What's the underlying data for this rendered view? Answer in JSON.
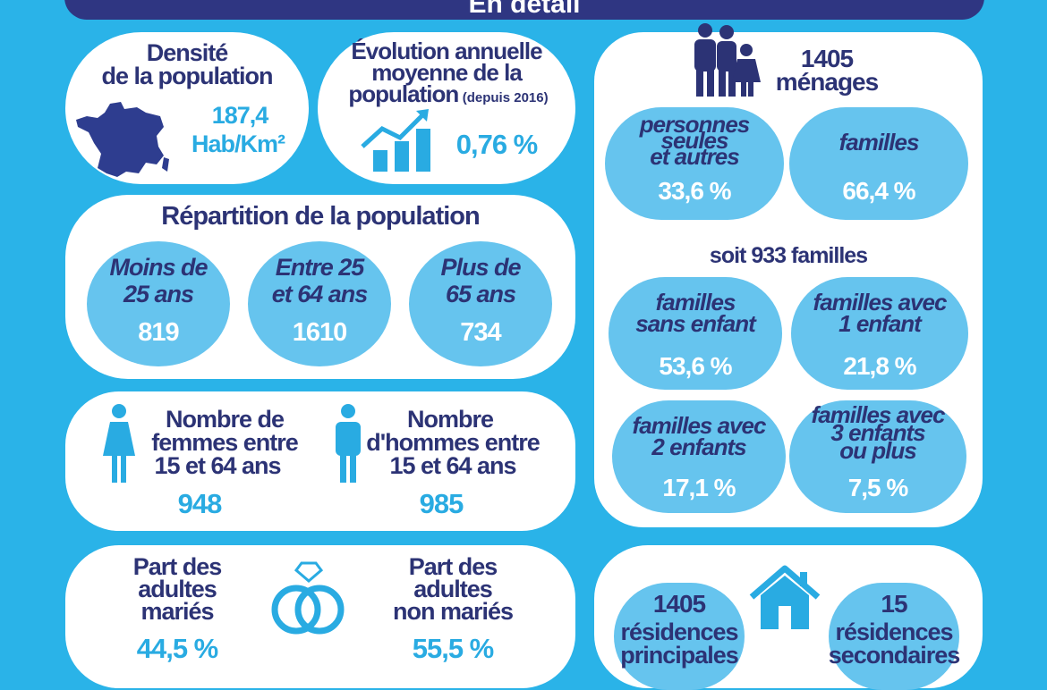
{
  "banner": {
    "title": "En détail"
  },
  "density": {
    "title_line1": "Densité",
    "title_line2": "de la population",
    "value": "187,4",
    "unit": "Hab/Km²",
    "map_icon": "france-map-icon"
  },
  "evolution": {
    "title_line1": "Évolution annuelle",
    "title_line2": "moyenne de la",
    "title_line3": "population",
    "title_note": "(depuis 2016)",
    "value": "0,76 %",
    "chart_icon": "growth-chart-icon"
  },
  "repartition": {
    "title": "Répartition de la population",
    "groups": [
      {
        "line1": "Moins de",
        "line2": "25 ans",
        "value": "819"
      },
      {
        "line1": "Entre 25",
        "line2": "et 64 ans",
        "value": "1610"
      },
      {
        "line1": "Plus de",
        "line2": "65 ans",
        "value": "734"
      }
    ]
  },
  "gender": {
    "women": {
      "line1": "Nombre de",
      "line2": "femmes entre",
      "line3": "15 et 64 ans",
      "value": "948",
      "icon": "woman-icon"
    },
    "men": {
      "line1": "Nombre",
      "line2": "d'hommes entre",
      "line3": "15 et 64 ans",
      "value": "985",
      "icon": "man-icon"
    }
  },
  "marriage": {
    "married": {
      "line1": "Part des",
      "line2": "adultes",
      "line3": "mariés",
      "value": "44,5 %"
    },
    "unmarried": {
      "line1": "Part des",
      "line2": "adultes",
      "line3": "non mariés",
      "value": "55,5 %"
    },
    "icon": "wedding-rings-icon"
  },
  "households": {
    "count": "1405",
    "label": "ménages",
    "icon": "family-icon",
    "single": {
      "line1": "personnes",
      "line2": "seules",
      "line3": "et autres",
      "value": "33,6 %"
    },
    "families": {
      "line1": "familles",
      "value": "66,4 %"
    },
    "families_total": "soit 933 familles",
    "no_child": {
      "line1": "familles",
      "line2": "sans enfant",
      "value": "53,6 %"
    },
    "one_child": {
      "line1": "familles avec",
      "line2": "1 enfant",
      "value": "21,8 %"
    },
    "two_children": {
      "line1": "familles avec",
      "line2": "2 enfants",
      "value": "17,1 %"
    },
    "three_plus": {
      "line1": "familles avec",
      "line2": "3 enfants",
      "line3": "ou plus",
      "value": "7,5 %"
    }
  },
  "residences": {
    "main": {
      "value": "1405",
      "line1": "résidences",
      "line2": "principales"
    },
    "secondary": {
      "value": "15",
      "line1": "résidences",
      "line2": "secondaires"
    },
    "icon": "house-icon"
  }
}
